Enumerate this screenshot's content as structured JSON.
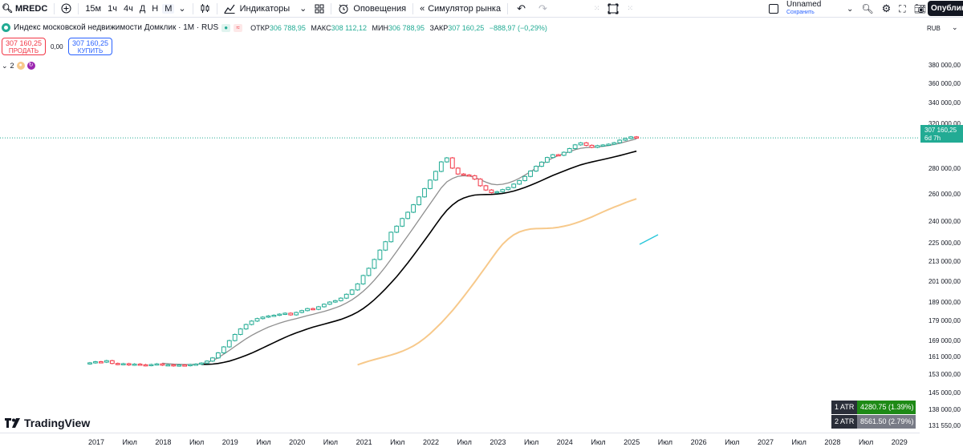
{
  "toolbar": {
    "symbol": "MREDC",
    "intervals": [
      "15м",
      "1ч",
      "4ч",
      "Д",
      "Н",
      "М"
    ],
    "active_interval": "М",
    "indicators_label": "Индикаторы",
    "alerts_label": "Оповещения",
    "replay_label": "Симулятор рынка",
    "layout_name": "Unnamed",
    "layout_status": "Сохранить",
    "publish_label": "Опублик"
  },
  "legend": {
    "title": "Индекс московской недвижимости Домклик · 1М · RUS",
    "open_label": "ОТКР",
    "open": "306 788,95",
    "high_label": "МАКС",
    "high": "308 112,12",
    "low_label": "МИН",
    "low": "306 788,95",
    "close_label": "ЗАКР",
    "close": "307 160,25",
    "change": "−888,97 (−0,29%)"
  },
  "trade": {
    "sell_price": "307 160,25",
    "sell_label": "ПРОДАТЬ",
    "spread": "0,00",
    "buy_price": "307 160,25",
    "buy_label": "КУПИТЬ"
  },
  "collapse_count": "2",
  "price_axis": {
    "currency": "RUB",
    "last_price": "307 160,25",
    "countdown": "6d 7h",
    "ticks": [
      "380 000,00",
      "360 000,00",
      "340 000,00",
      "320 000,00",
      "280 000,00",
      "260 000,00",
      "240 000,00",
      "225 000,00",
      "213 000,00",
      "201 000,00",
      "189 000,00",
      "179 000,00",
      "169 000,00",
      "161 000,00",
      "153 000,00",
      "145 000,00",
      "138 000,00",
      "131 550,00"
    ]
  },
  "time_axis": {
    "ticks": [
      "2017",
      "Июл",
      "2018",
      "Июл",
      "2019",
      "Июл",
      "2020",
      "Июл",
      "2021",
      "Июл",
      "2022",
      "Июл",
      "2023",
      "Июл",
      "2024",
      "Июл",
      "2025",
      "Июл",
      "2026",
      "Июл",
      "2027",
      "Июл",
      "2028",
      "Июл",
      "2029"
    ]
  },
  "atr": [
    {
      "name": "1 ATR",
      "value": "4280.75 (1.39%)",
      "color": "#1e8a16"
    },
    {
      "name": "2 ATR",
      "value": "8561.50 (2.79%)",
      "color": "#787b86"
    }
  ],
  "logo_text": "TradingView",
  "colors": {
    "up": "#22ab94",
    "down": "#f23645",
    "ma_fast": "#8f8f8f",
    "ma_mid": "#000000",
    "ma_slow": "#f7c98b",
    "ray": "#26c6da"
  },
  "chart_data": {
    "type": "candlestick",
    "title": "Индекс московской недвижимости Домклик · 1М · RUS",
    "x_start": "2017-01",
    "interval": "1M",
    "closes": [
      158500,
      159000,
      158800,
      159500,
      158200,
      157800,
      158100,
      157500,
      157900,
      157600,
      157300,
      157700,
      158000,
      157400,
      157600,
      157100,
      157500,
      157200,
      157700,
      157900,
      158400,
      159300,
      160800,
      163200,
      166100,
      169200,
      172300,
      175100,
      177400,
      179200,
      180500,
      181300,
      181900,
      182300,
      182900,
      183400,
      182500,
      183800,
      184800,
      185900,
      185500,
      186900,
      188300,
      189500,
      190300,
      191700,
      193900,
      196400,
      199900,
      204900,
      209300,
      214800,
      220800,
      226300,
      232700,
      236900,
      242300,
      246800,
      252300,
      258200,
      264600,
      271300,
      278300,
      286200,
      289600,
      281000,
      276200,
      275400,
      274800,
      272100,
      266800,
      263500,
      261400,
      262200,
      263800,
      265400,
      268100,
      270900,
      274200,
      278600,
      282500,
      286000,
      289900,
      292300,
      291800,
      294400,
      297600,
      300900,
      302700,
      300500,
      298700,
      300200,
      300800,
      301500,
      302800,
      305100,
      306600,
      308048,
      307160
    ],
    "ma_fast": [
      null,
      null,
      null,
      null,
      null,
      null,
      null,
      null,
      null,
      null,
      null,
      null,
      null,
      158300,
      158100,
      157900,
      157800,
      157700,
      157700,
      157800,
      158100,
      158700,
      159600,
      160900,
      162600,
      164400,
      166300,
      168200,
      170100,
      171800,
      173300,
      174700,
      176000,
      177100,
      178100,
      179000,
      179800,
      180500,
      181300,
      182100,
      182800,
      183600,
      184400,
      185300,
      186300,
      187500,
      189000,
      190800,
      193000,
      195600,
      198600,
      202100,
      206000,
      210300,
      215000,
      219900,
      225100,
      230300,
      235700,
      241300,
      247100,
      253000,
      259000,
      265200,
      269900,
      272600,
      274300,
      274800,
      274500,
      273500,
      271600,
      269600,
      268100,
      267600,
      268000,
      269000,
      270600,
      272700,
      275300,
      278100,
      281000,
      284000,
      287000,
      289600,
      291600,
      293300,
      294900,
      296600,
      297900,
      298500,
      298800,
      299100,
      299600,
      300300,
      301200,
      302300,
      303600,
      304900,
      306200
    ],
    "ma_mid": [
      null,
      null,
      null,
      null,
      null,
      null,
      null,
      null,
      null,
      null,
      null,
      null,
      null,
      null,
      null,
      null,
      null,
      null,
      null,
      null,
      157800,
      157800,
      157900,
      158200,
      158700,
      159300,
      160100,
      161000,
      162000,
      163100,
      164300,
      165600,
      166900,
      168200,
      169500,
      170800,
      172000,
      173100,
      174100,
      175100,
      176000,
      176800,
      177600,
      178400,
      179200,
      180100,
      181200,
      182500,
      184000,
      185900,
      188200,
      190800,
      193800,
      197000,
      200500,
      204200,
      208300,
      212700,
      217300,
      222100,
      227200,
      232400,
      237800,
      243300,
      248200,
      252100,
      255200,
      257300,
      258700,
      259600,
      259900,
      260000,
      260100,
      260400,
      260900,
      261700,
      262700,
      264000,
      265500,
      267200,
      269000,
      271000,
      273000,
      275000,
      276800,
      278600,
      280400,
      282100,
      283700,
      285000,
      286100,
      287200,
      288200,
      289300,
      290400,
      291600,
      292800,
      294100,
      295400
    ],
    "ma_slow": [
      null,
      null,
      null,
      null,
      null,
      null,
      null,
      null,
      null,
      null,
      null,
      null,
      null,
      null,
      null,
      null,
      null,
      null,
      null,
      null,
      null,
      null,
      null,
      null,
      null,
      null,
      null,
      null,
      null,
      null,
      null,
      null,
      null,
      null,
      null,
      null,
      null,
      null,
      null,
      null,
      null,
      null,
      null,
      null,
      null,
      null,
      null,
      null,
      null,
      null,
      null,
      null,
      null,
      null,
      null,
      null,
      null,
      null,
      null,
      null,
      null,
      null,
      null,
      null,
      null,
      null,
      null,
      null,
      null,
      null,
      null,
      null,
      null,
      null,
      null,
      null,
      null,
      null,
      null,
      null,
      null,
      null,
      null,
      null,
      null,
      null,
      null,
      null,
      null,
      null,
      null,
      null,
      null,
      null,
      null,
      null,
      null,
      null,
      null
    ],
    "ylim_log": [
      131550,
      400000
    ]
  }
}
